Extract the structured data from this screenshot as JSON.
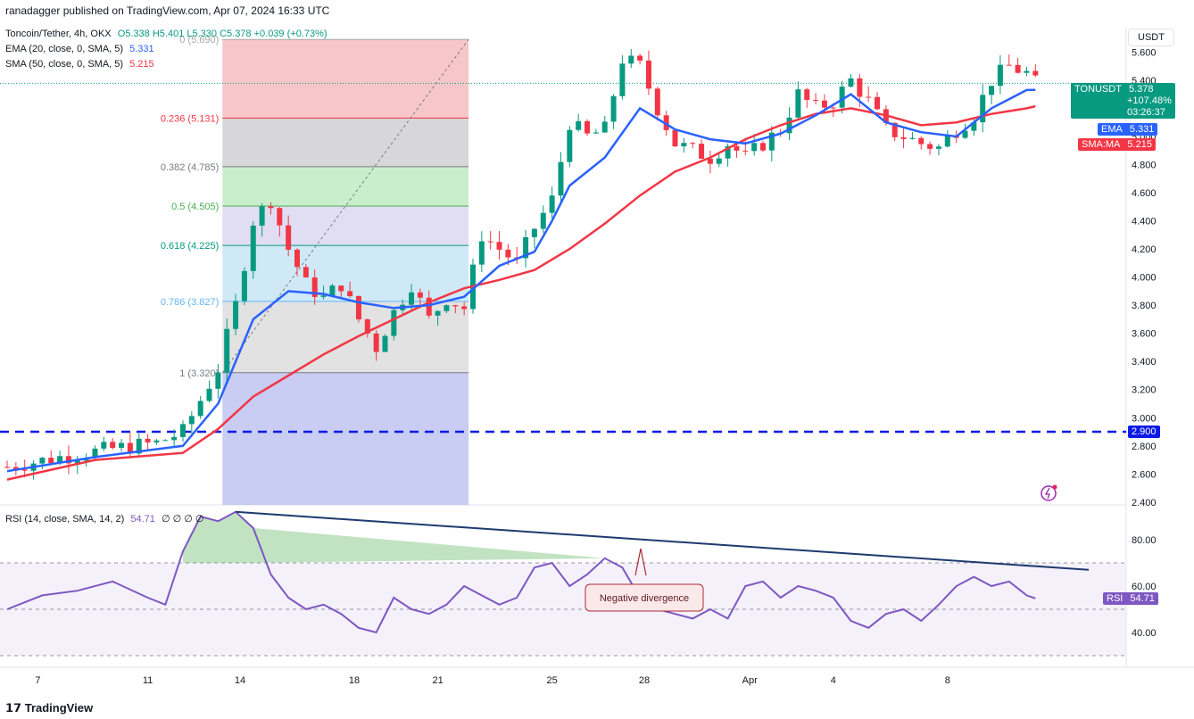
{
  "header": {
    "published": "ranadagger published on TradingView.com, Apr 07, 2024 16:33 UTC",
    "currency": "USDT"
  },
  "legend": {
    "symbol": "Toncoin/Tether, 4h, OKX",
    "ohlc": "O5.338 H5.401 L5.330 C5.378 +0.039 (+0.73%)",
    "ema_label": "EMA (20, close, 0, SMA, 5)",
    "ema_value": "5.331",
    "sma_label": "SMA (50, close, 0, SMA, 5)",
    "sma_value": "5.215",
    "rsi_label": "RSI (14, close, SMA, 14, 2)",
    "rsi_value": "54.71",
    "rsi_extra": "∅ ∅ ∅ ∅"
  },
  "price_tags": {
    "symbol_tag": "TONUSDT",
    "last_price": "5.378",
    "change": "+107.48%",
    "countdown": "03:26:37",
    "ema_tag": "EMA",
    "ema_value": "5.331",
    "sma_tag": "SMA:MA",
    "sma_value": "5.215",
    "level_tag": "2.900",
    "rsi_tag": "RSI",
    "rsi_value": "54.71"
  },
  "annotations": {
    "divergence": "Negative divergence"
  },
  "fib_levels": [
    {
      "label": "0 (5.690)",
      "price": 5.69
    },
    {
      "label": "0.236 (5.131)",
      "price": 5.131
    },
    {
      "label": "0.382 (4.785)",
      "price": 4.785
    },
    {
      "label": "0.5 (4.505)",
      "price": 4.505
    },
    {
      "label": "0.618 (4.225)",
      "price": 4.225
    },
    {
      "label": "0.786 (3.827)",
      "price": 3.827
    },
    {
      "label": "1 (3.320)",
      "price": 3.32
    }
  ],
  "footer": {
    "brand": "TradingView"
  },
  "chart_data": {
    "type": "candlestick",
    "title": "Toncoin/Tether, 4h, OKX",
    "price_axis_ticks": [
      "5.600",
      "5.400",
      "5.200",
      "5.000",
      "4.800",
      "4.600",
      "4.400",
      "4.200",
      "4.000",
      "3.800",
      "3.600",
      "3.400",
      "3.200",
      "3.000",
      "2.800",
      "2.600",
      "2.400"
    ],
    "rsi_axis_ticks": [
      "80.00",
      "60.00",
      "40.00"
    ],
    "x_ticks": [
      "7",
      "11",
      "14",
      "18",
      "21",
      "25",
      "28",
      "Apr",
      "4",
      "8"
    ],
    "ylim": [
      2.38,
      5.78
    ],
    "rsi_ylim": [
      25,
      95
    ],
    "support_level": 2.9,
    "rsi_bands": [
      70,
      50,
      30
    ],
    "price_path": [
      [
        0,
        2.65
      ],
      [
        6,
        2.72
      ],
      [
        12,
        2.78
      ],
      [
        17,
        2.82
      ],
      [
        20,
        2.9
      ],
      [
        24,
        3.35
      ],
      [
        26,
        3.8
      ],
      [
        28,
        4.4
      ],
      [
        30,
        4.55
      ],
      [
        32,
        4.2
      ],
      [
        34,
        3.95
      ],
      [
        36,
        3.85
      ],
      [
        38,
        3.95
      ],
      [
        40,
        3.7
      ],
      [
        42,
        3.5
      ],
      [
        44,
        3.75
      ],
      [
        46,
        3.95
      ],
      [
        48,
        3.7
      ],
      [
        50,
        3.85
      ],
      [
        52,
        3.78
      ],
      [
        54,
        4.3
      ],
      [
        56,
        4.2
      ],
      [
        58,
        4.1
      ],
      [
        60,
        4.35
      ],
      [
        62,
        4.55
      ],
      [
        64,
        5.1
      ],
      [
        66,
        5.0
      ],
      [
        68,
        5.05
      ],
      [
        70,
        5.55
      ],
      [
        72,
        5.5
      ],
      [
        74,
        5.2
      ],
      [
        76,
        4.95
      ],
      [
        78,
        4.9
      ],
      [
        80,
        4.85
      ],
      [
        82,
        4.95
      ],
      [
        84,
        4.85
      ],
      [
        86,
        4.95
      ],
      [
        88,
        5.05
      ],
      [
        90,
        5.3
      ],
      [
        92,
        5.2
      ],
      [
        94,
        5.25
      ],
      [
        96,
        5.4
      ],
      [
        98,
        5.25
      ],
      [
        100,
        5.05
      ],
      [
        102,
        5.0
      ],
      [
        104,
        4.95
      ],
      [
        106,
        4.92
      ],
      [
        108,
        5.05
      ],
      [
        110,
        5.15
      ],
      [
        112,
        5.4
      ],
      [
        114,
        5.5
      ],
      [
        116,
        5.45
      ],
      [
        117,
        5.38
      ]
    ],
    "ema_path": [
      [
        0,
        2.62
      ],
      [
        10,
        2.72
      ],
      [
        20,
        2.8
      ],
      [
        24,
        3.1
      ],
      [
        28,
        3.7
      ],
      [
        32,
        3.9
      ],
      [
        36,
        3.88
      ],
      [
        40,
        3.82
      ],
      [
        44,
        3.78
      ],
      [
        48,
        3.8
      ],
      [
        52,
        3.86
      ],
      [
        56,
        4.08
      ],
      [
        60,
        4.18
      ],
      [
        62,
        4.4
      ],
      [
        64,
        4.65
      ],
      [
        68,
        4.85
      ],
      [
        72,
        5.2
      ],
      [
        76,
        5.05
      ],
      [
        80,
        4.98
      ],
      [
        84,
        4.95
      ],
      [
        88,
        5.02
      ],
      [
        92,
        5.15
      ],
      [
        96,
        5.3
      ],
      [
        100,
        5.1
      ],
      [
        104,
        5.03
      ],
      [
        108,
        5.0
      ],
      [
        112,
        5.2
      ],
      [
        116,
        5.33
      ],
      [
        117,
        5.331
      ]
    ],
    "sma_path": [
      [
        0,
        2.56
      ],
      [
        10,
        2.7
      ],
      [
        20,
        2.75
      ],
      [
        24,
        2.92
      ],
      [
        28,
        3.15
      ],
      [
        32,
        3.3
      ],
      [
        36,
        3.45
      ],
      [
        40,
        3.58
      ],
      [
        44,
        3.7
      ],
      [
        48,
        3.82
      ],
      [
        52,
        3.92
      ],
      [
        56,
        3.98
      ],
      [
        60,
        4.05
      ],
      [
        64,
        4.2
      ],
      [
        68,
        4.38
      ],
      [
        72,
        4.58
      ],
      [
        76,
        4.75
      ],
      [
        80,
        4.85
      ],
      [
        84,
        4.98
      ],
      [
        88,
        5.08
      ],
      [
        92,
        5.16
      ],
      [
        96,
        5.2
      ],
      [
        100,
        5.15
      ],
      [
        104,
        5.08
      ],
      [
        108,
        5.1
      ],
      [
        112,
        5.16
      ],
      [
        116,
        5.2
      ],
      [
        117,
        5.215
      ]
    ],
    "rsi_path": [
      [
        0,
        50
      ],
      [
        4,
        56
      ],
      [
        8,
        58
      ],
      [
        12,
        62
      ],
      [
        16,
        55
      ],
      [
        18,
        52
      ],
      [
        20,
        75
      ],
      [
        22,
        90
      ],
      [
        24,
        88
      ],
      [
        26,
        92
      ],
      [
        28,
        85
      ],
      [
        30,
        65
      ],
      [
        32,
        55
      ],
      [
        34,
        50
      ],
      [
        36,
        52
      ],
      [
        38,
        48
      ],
      [
        40,
        42
      ],
      [
        42,
        40
      ],
      [
        44,
        55
      ],
      [
        46,
        50
      ],
      [
        48,
        48
      ],
      [
        50,
        52
      ],
      [
        52,
        60
      ],
      [
        54,
        56
      ],
      [
        56,
        52
      ],
      [
        58,
        55
      ],
      [
        60,
        68
      ],
      [
        62,
        70
      ],
      [
        64,
        60
      ],
      [
        66,
        65
      ],
      [
        68,
        72
      ],
      [
        70,
        68
      ],
      [
        72,
        55
      ],
      [
        74,
        50
      ],
      [
        76,
        48
      ],
      [
        78,
        46
      ],
      [
        80,
        50
      ],
      [
        82,
        46
      ],
      [
        84,
        60
      ],
      [
        86,
        62
      ],
      [
        88,
        55
      ],
      [
        90,
        60
      ],
      [
        92,
        58
      ],
      [
        94,
        55
      ],
      [
        96,
        45
      ],
      [
        98,
        42
      ],
      [
        100,
        48
      ],
      [
        102,
        50
      ],
      [
        104,
        45
      ],
      [
        106,
        52
      ],
      [
        108,
        60
      ],
      [
        110,
        64
      ],
      [
        112,
        60
      ],
      [
        114,
        62
      ],
      [
        116,
        56
      ],
      [
        117,
        54.71
      ]
    ],
    "rsi_trendline": [
      [
        26,
        92
      ],
      [
        119,
        67
      ]
    ],
    "fib_range": {
      "x0": 24.5,
      "x1": 52.5,
      "high": 5.69,
      "low": 3.32
    }
  }
}
